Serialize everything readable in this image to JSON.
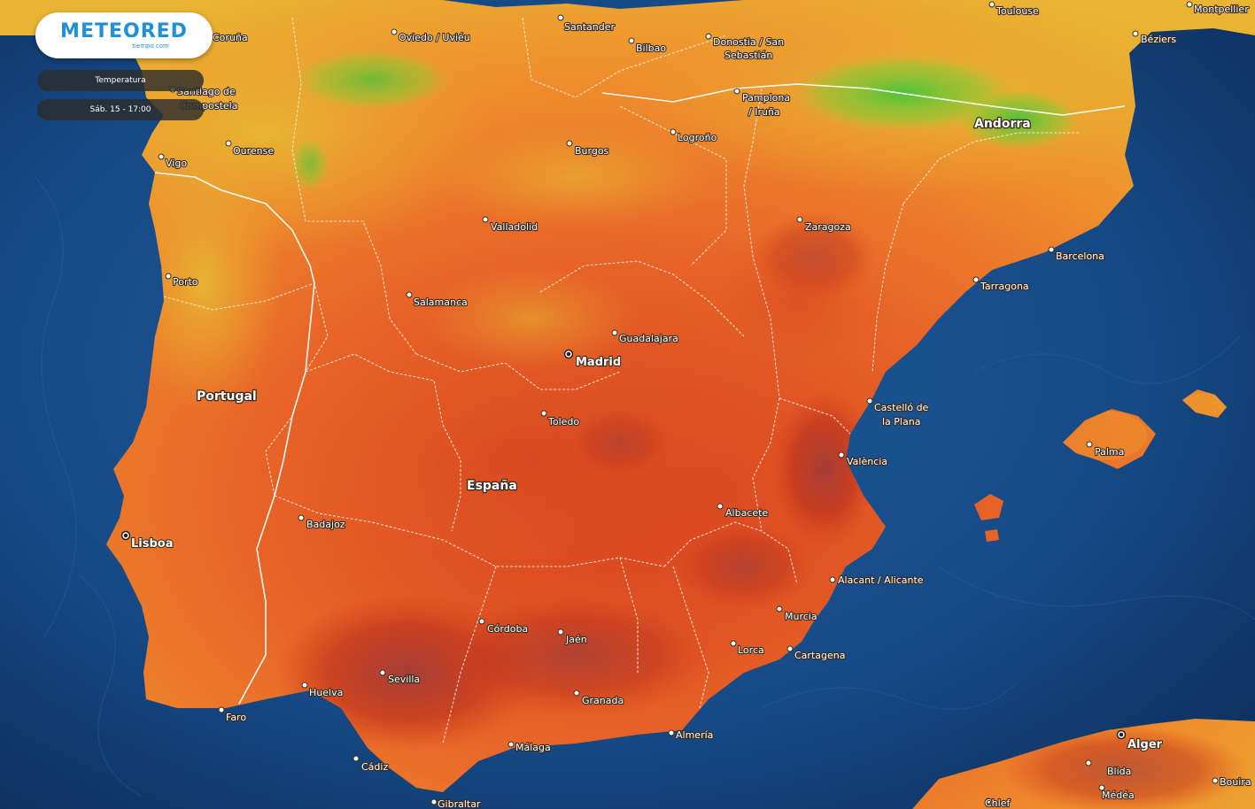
{
  "brand": {
    "name": "METEORED",
    "sub": "tiempo.com"
  },
  "overlay": {
    "parameter": "Temperatura",
    "time": "Sáb. 15 - 17:00"
  },
  "colors": {
    "sea": "#123a6e",
    "cool": "#e8b430",
    "mild": "#ef8a2c",
    "warm": "#e35a23",
    "hot": "#c73a1e",
    "extreme": "#a83a3a",
    "mountain_green": "#3fbf3a",
    "border": "#f3ece0"
  },
  "countries": [
    {
      "id": "portugal",
      "label": "Portugal"
    },
    {
      "id": "espana",
      "label": "España"
    },
    {
      "id": "andorra",
      "label": "Andorra"
    }
  ],
  "cities": [
    {
      "id": "coruna",
      "label": "Coruña"
    },
    {
      "id": "oviedo",
      "label": "Oviedo / Uviéu"
    },
    {
      "id": "santander",
      "label": "Santander"
    },
    {
      "id": "bilbao",
      "label": "Bilbao"
    },
    {
      "id": "donostia",
      "label": "Donostia / San",
      "label2": "Sebastián"
    },
    {
      "id": "toulouse",
      "label": "Toulouse"
    },
    {
      "id": "montpellier",
      "label": "Montpellier"
    },
    {
      "id": "beziers",
      "label": "Béziers"
    },
    {
      "id": "santiago",
      "label": "Santiago de",
      "label2": "Compostela"
    },
    {
      "id": "pamplona",
      "label": "Pamplona",
      "label2": "/ Iruña"
    },
    {
      "id": "logrono",
      "label": "Logroño"
    },
    {
      "id": "burgos",
      "label": "Burgos"
    },
    {
      "id": "ourense",
      "label": "Ourense"
    },
    {
      "id": "vigo",
      "label": "Vigo"
    },
    {
      "id": "valladolid",
      "label": "Valladolid"
    },
    {
      "id": "zaragoza",
      "label": "Zaragoza"
    },
    {
      "id": "barcelona",
      "label": "Barcelona"
    },
    {
      "id": "tarragona",
      "label": "Tarragona"
    },
    {
      "id": "porto",
      "label": "Porto"
    },
    {
      "id": "salamanca",
      "label": "Salamanca"
    },
    {
      "id": "guadalajara",
      "label": "Guadalajara"
    },
    {
      "id": "madrid",
      "label": "Madrid"
    },
    {
      "id": "castello",
      "label": "Castelló de",
      "label2": "la Plana"
    },
    {
      "id": "toledo",
      "label": "Toledo"
    },
    {
      "id": "palma",
      "label": "Palma"
    },
    {
      "id": "valencia",
      "label": "València"
    },
    {
      "id": "albacete",
      "label": "Albacete"
    },
    {
      "id": "badajoz",
      "label": "Badajoz"
    },
    {
      "id": "lisboa",
      "label": "Lisboa"
    },
    {
      "id": "alicante",
      "label": "Alacant / Alicante"
    },
    {
      "id": "murcia",
      "label": "Murcia"
    },
    {
      "id": "cordoba",
      "label": "Córdoba"
    },
    {
      "id": "jaen",
      "label": "Jaén"
    },
    {
      "id": "lorca",
      "label": "Lorca"
    },
    {
      "id": "cartagena",
      "label": "Cartagena"
    },
    {
      "id": "sevilla",
      "label": "Sevilla"
    },
    {
      "id": "huelva",
      "label": "Huelva"
    },
    {
      "id": "granada",
      "label": "Granada"
    },
    {
      "id": "faro",
      "label": "Faro"
    },
    {
      "id": "almeria",
      "label": "Almería"
    },
    {
      "id": "malaga",
      "label": "Málaga"
    },
    {
      "id": "cadiz",
      "label": "Cádiz"
    },
    {
      "id": "gibraltar",
      "label": "Gibraltar"
    },
    {
      "id": "alger",
      "label": "Alger"
    },
    {
      "id": "blida",
      "label": "Blida"
    },
    {
      "id": "medea",
      "label": "Médéa"
    },
    {
      "id": "bouira",
      "label": "Bouira"
    },
    {
      "id": "chlef",
      "label": "Chlef"
    }
  ]
}
